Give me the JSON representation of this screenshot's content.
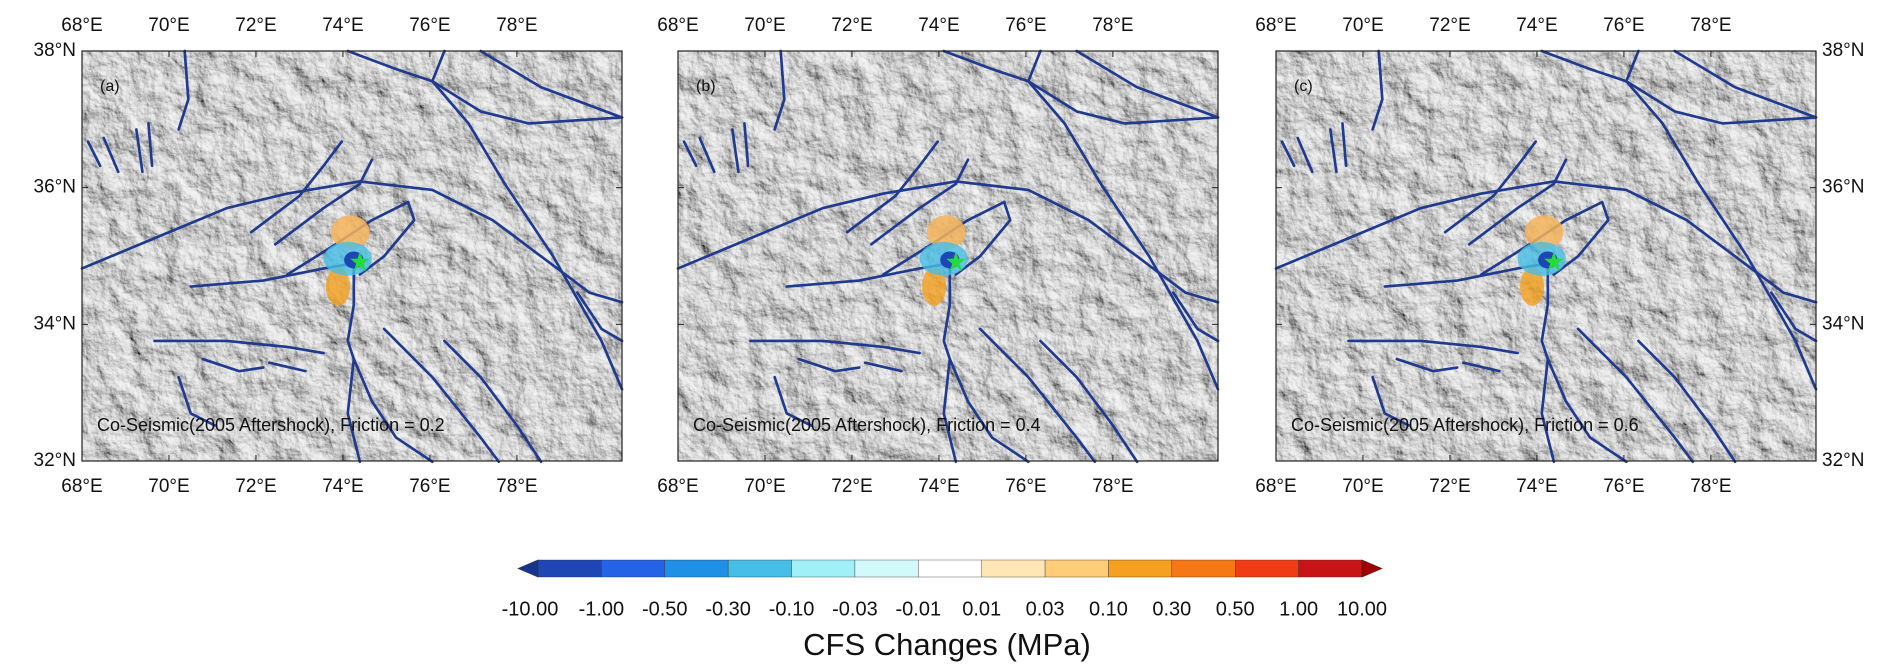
{
  "panels": [
    {
      "label": "(a)",
      "caption": "Co-Seismic(2005 Aftershock), Friction = 0.2"
    },
    {
      "label": "(b)",
      "caption": "Co-Seismic(2005 Aftershock), Friction = 0.4"
    },
    {
      "label": "(c)",
      "caption": "Co-Seismic(2005 Aftershock), Friction = 0.6"
    }
  ],
  "lon_ticks": [
    "68°E",
    "70°E",
    "72°E",
    "74°E",
    "76°E",
    "78°E"
  ],
  "lat_ticks": [
    "38°N",
    "36°N",
    "34°N",
    "32°N"
  ],
  "colorbar": {
    "title": "CFS Changes (MPa)",
    "labels": [
      "-10.00",
      "-1.00",
      "-0.50",
      "-0.30",
      "-0.10",
      "-0.03",
      "-0.01",
      "0.01",
      "0.03",
      "0.10",
      "0.30",
      "0.50",
      "1.00",
      "10.00"
    ],
    "colors": [
      "#17348c",
      "#1e46b4",
      "#2563e6",
      "#1e90e6",
      "#46bee6",
      "#a0f0f8",
      "#d2fafa",
      "#ffffff",
      "#ffe6b4",
      "#ffcc78",
      "#f5a01e",
      "#f57814",
      "#f03c14",
      "#c81414",
      "#a00000"
    ]
  }
}
